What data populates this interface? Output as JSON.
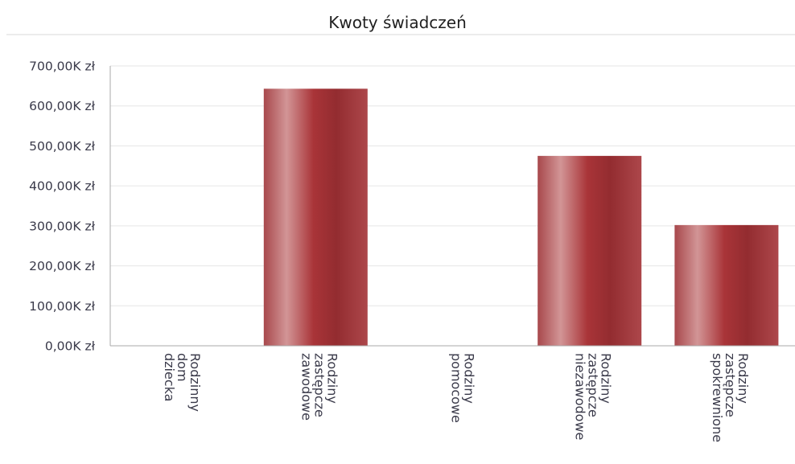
{
  "chart_data": {
    "type": "bar",
    "title": "Kwoty świadczeń",
    "categories": [
      [
        "Rodzinny",
        "dom",
        "dziecka"
      ],
      [
        "Rodziny",
        "zastępcze",
        "zawodowe"
      ],
      [
        "Rodziny",
        "pomocowe"
      ],
      [
        "Rodziny",
        "zastępcze",
        "niezawodowe"
      ],
      [
        "Rodziny",
        "zastępcze",
        "spokrewnione"
      ]
    ],
    "values": [
      0,
      643000,
      0,
      475000,
      302000
    ],
    "ylim": [
      0,
      700000
    ],
    "yticks": [
      "0,00K zł",
      "100,00K zł",
      "200,00K zł",
      "300,00K zł",
      "400,00K zł",
      "500,00K zł",
      "600,00K zł",
      "700,00K zł"
    ],
    "grid": true,
    "bar_color": "#a13236"
  }
}
